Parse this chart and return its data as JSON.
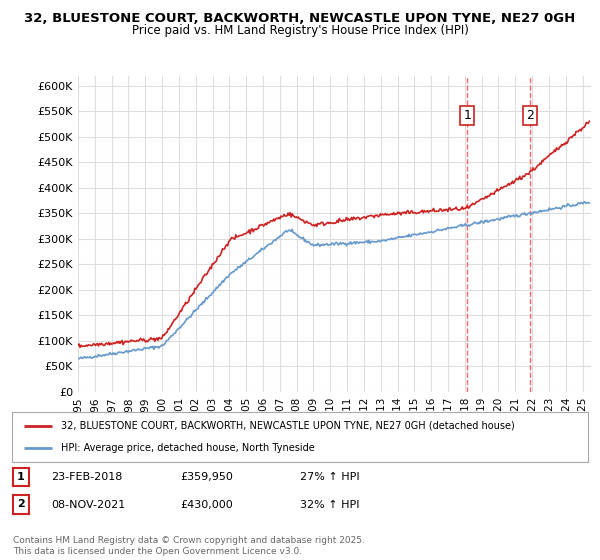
{
  "title1": "32, BLUESTONE COURT, BACKWORTH, NEWCASTLE UPON TYNE, NE27 0GH",
  "title2": "Price paid vs. HM Land Registry's House Price Index (HPI)",
  "ylim": [
    0,
    620000
  ],
  "yticks": [
    0,
    50000,
    100000,
    150000,
    200000,
    250000,
    300000,
    350000,
    400000,
    450000,
    500000,
    550000,
    600000
  ],
  "xlim_start": 1995.0,
  "xlim_end": 2025.5,
  "marker1_x": 2018.14,
  "marker1_y": 359950,
  "marker1_label": "1",
  "marker2_x": 2021.85,
  "marker2_y": 430000,
  "marker2_label": "2",
  "hpi_color": "#6699cc",
  "price_color": "#cc2222",
  "dashed_color": "#ff6666",
  "legend_price_label": "32, BLUESTONE COURT, BACKWORTH, NEWCASTLE UPON TYNE, NE27 0GH (detached house)",
  "legend_hpi_label": "HPI: Average price, detached house, North Tyneside",
  "table_entries": [
    {
      "num": "1",
      "date": "23-FEB-2018",
      "price": "£359,950",
      "change": "27% ↑ HPI"
    },
    {
      "num": "2",
      "date": "08-NOV-2021",
      "price": "£430,000",
      "change": "32% ↑ HPI"
    }
  ],
  "footnote": "Contains HM Land Registry data © Crown copyright and database right 2025.\nThis data is licensed under the Open Government Licence v3.0.",
  "bg_color": "#ffffff",
  "grid_color": "#dddddd"
}
